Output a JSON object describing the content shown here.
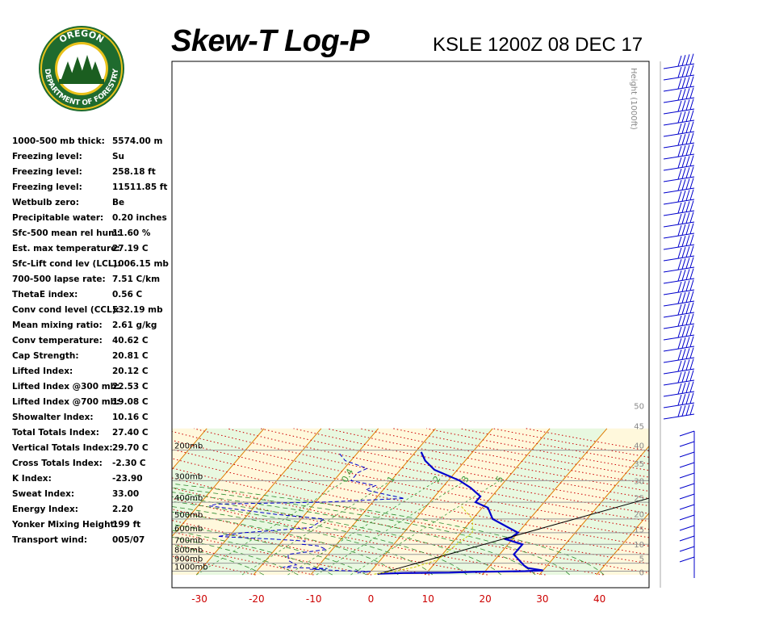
{
  "header": {
    "title": "Skew-T Log-P",
    "station": "KSLE 1200Z 08 DEC 17"
  },
  "logo": {
    "top_text": "OREGON",
    "bottom_text": "DEPARTMENT OF FORESTRY",
    "colors": {
      "ring": "#1f6b2e",
      "gold": "#e9c11a",
      "tree": "#1b5e20"
    }
  },
  "stats": [
    {
      "label": "1000-500 mb thick:",
      "value": "5574.00 m"
    },
    {
      "label": "Freezing level:",
      "value": "Su"
    },
    {
      "label": "Freezing level:",
      "value": "258.18 ft"
    },
    {
      "label": "Freezing level:",
      "value": "11511.85 ft"
    },
    {
      "label": "Wetbulb zero:",
      "value": "Be"
    },
    {
      "label": "Precipitable water:",
      "value": "0.20 inches"
    },
    {
      "label": "Sfc-500 mean rel hum:",
      "value": "11.60 %"
    },
    {
      "label": "Est. max temperature:",
      "value": "27.19 C"
    },
    {
      "label": "Sfc-Lift cond lev (LCL):",
      "value": "1006.15 mb"
    },
    {
      "label": "700-500 lapse rate:",
      "value": "7.51 C/km"
    },
    {
      "label": "ThetaE index:",
      "value": "0.56 C"
    },
    {
      "label": "Conv cond level (CCL):",
      "value": "532.19 mb"
    },
    {
      "label": " Mean mixing ratio:",
      "value": "2.61 g/kg"
    },
    {
      "label": " Conv temperature:",
      "value": "40.62 C"
    },
    {
      "label": "Cap Strength:",
      "value": "20.81 C"
    },
    {
      "label": "Lifted Index:",
      "value": "20.12 C"
    },
    {
      "label": "Lifted Index @300 mb:",
      "value": "22.53 C"
    },
    {
      "label": "Lifted Index @700 mb:",
      "value": "19.08 C"
    },
    {
      "label": "Showalter Index:",
      "value": "10.16 C"
    },
    {
      "label": "Total Totals Index:",
      "value": "27.40 C"
    },
    {
      "label": " Vertical Totals Index:",
      "value": "29.70 C"
    },
    {
      "label": " Cross Totals Index:",
      "value": "-2.30 C"
    },
    {
      "label": "K Index:",
      "value": "-23.90"
    },
    {
      "label": "Sweat Index:",
      "value": "33.00"
    },
    {
      "label": "Energy Index:",
      "value": "2.20"
    },
    {
      "label": "Yonker Mixing Height:",
      "value": "199 ft"
    },
    {
      "label": "Transport wind:",
      "value": "005/07"
    }
  ],
  "chart_data": {
    "type": "line",
    "title": "Skew-T Log-P",
    "subtitle": "KSLE 1200Z 08 DEC 17",
    "xlabel": "",
    "ylabel": "",
    "x_ticks": [
      -30,
      -20,
      -10,
      0,
      10,
      20,
      30,
      40
    ],
    "x_tick_labels": [
      "-30",
      "-20",
      "-10",
      "0",
      "10",
      "20",
      "30",
      "40"
    ],
    "xlim": [
      -33,
      49
    ],
    "pressure_levels": [
      200,
      300,
      400,
      500,
      600,
      700,
      800,
      900,
      1000
    ],
    "pressure_labels": [
      "200mb",
      "300mb",
      "400mb",
      "500mb",
      "600mb",
      "700mb",
      "800mb",
      "900mb",
      "1000mb"
    ],
    "ylim": [
      1050,
      155
    ],
    "height_axis_label": "Height (1000ft)",
    "height_ticks": [
      50,
      45,
      40,
      35,
      30,
      25,
      20,
      15,
      10,
      5,
      0
    ],
    "height_tick_labels": [
      "50",
      "45",
      "40",
      "35",
      "30",
      "25",
      "20",
      "15",
      "10",
      "5",
      "0"
    ],
    "mixing_ratio_labels": [
      "0.4",
      "1",
      "2",
      "3",
      "5"
    ],
    "colors": {
      "temperature": "#0000cc",
      "dewpoint": "#0000cc",
      "isotherm": "#e07a00",
      "dry_adiabat": "#cc0000",
      "moist_adiabat": "#2e8b2e",
      "mixing_ratio": "#3a9a3a",
      "parcel": "#000000",
      "wetbulb": "#cccc00",
      "band_warm": "#fff8dc",
      "band_cool": "#e8f8e0",
      "wind_barb": "#0000cc"
    },
    "series": [
      {
        "name": "",
        "kind": "temperature",
        "points": [
          [
            1.6,
            1040
          ],
          [
            1.8,
            1035
          ],
          [
            6,
            1025
          ],
          [
            14,
            1020
          ],
          [
            18,
            1010
          ],
          [
            27,
            1000
          ],
          [
            30,
            990
          ],
          [
            27,
            960
          ],
          [
            26,
            930
          ],
          [
            22.5,
            800
          ],
          [
            22.5,
            700
          ],
          [
            18.5,
            650
          ],
          [
            19.5,
            640
          ],
          [
            20,
            600
          ],
          [
            13.5,
            500
          ],
          [
            11,
            430
          ],
          [
            8,
            400
          ],
          [
            8,
            370
          ],
          [
            5,
            330
          ],
          [
            2,
            300
          ],
          [
            -4,
            260
          ],
          [
            -7,
            230
          ],
          [
            -9,
            205
          ]
        ]
      },
      {
        "name": "",
        "kind": "dewpoint",
        "points": [
          [
            -2,
            1030
          ],
          [
            -2,
            1018
          ],
          [
            0,
            1005
          ],
          [
            -6,
            990
          ],
          [
            -11,
            975
          ],
          [
            -8,
            965
          ],
          [
            -16,
            950
          ],
          [
            -14,
            920
          ],
          [
            -16,
            870
          ],
          [
            -17,
            800
          ],
          [
            -11,
            750
          ],
          [
            -13,
            715
          ],
          [
            -16,
            700
          ],
          [
            -16,
            670
          ],
          [
            -23,
            650
          ],
          [
            -32,
            630
          ],
          [
            -28,
            600
          ],
          [
            -17,
            560
          ],
          [
            -16,
            500
          ],
          [
            -25,
            470
          ],
          [
            -38,
            420
          ],
          [
            -37,
            410
          ],
          [
            -19,
            400
          ],
          [
            -5,
            380
          ],
          [
            -9,
            360
          ],
          [
            -13,
            340
          ],
          [
            -12,
            320
          ],
          [
            -17,
            300
          ],
          [
            -17,
            270
          ],
          [
            -16,
            255
          ],
          [
            -21,
            230
          ],
          [
            -23,
            210
          ]
        ]
      },
      {
        "name": "",
        "kind": "parcel",
        "points": [
          [
            1.6,
            1040
          ],
          [
            52,
            255
          ]
        ]
      },
      {
        "name": "",
        "kind": "wetbulb",
        "points": [
          [
            1,
            1040
          ],
          [
            4,
            1000
          ],
          [
            7,
            950
          ],
          [
            10,
            860
          ],
          [
            11,
            700
          ],
          [
            12,
            600
          ],
          [
            10,
            500
          ],
          [
            6,
            420
          ]
        ]
      }
    ],
    "wind_barbs": {
      "upper": [
        {
          "direction": 250,
          "speed_kt": 60
        }
      ],
      "lower": [
        {
          "direction": 0,
          "speed_kt": 10
        }
      ]
    },
    "grid": true
  }
}
